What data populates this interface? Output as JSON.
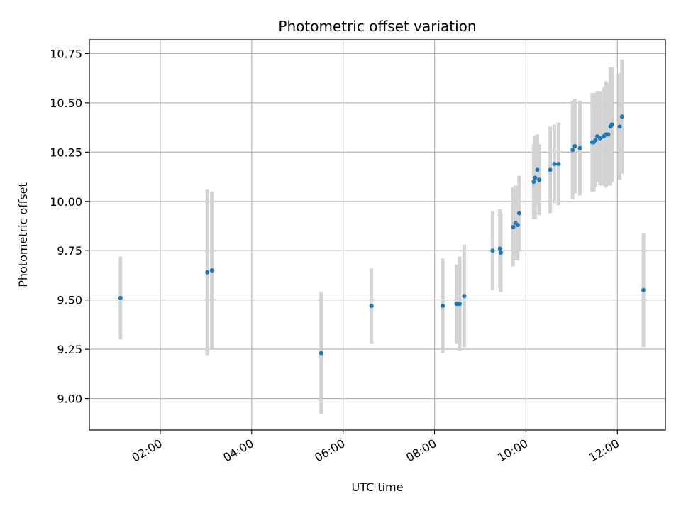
{
  "chart_data": {
    "type": "scatter",
    "title": "Photometric offset variation",
    "xlabel": "UTC time",
    "ylabel": "Photometric offset",
    "x_unit": "hours (UTC)",
    "xlim": [
      0.45,
      13.05
    ],
    "ylim": [
      8.84,
      10.82
    ],
    "grid": true,
    "x_ticks": [
      {
        "value": 2,
        "label": "02:00"
      },
      {
        "value": 4,
        "label": "04:00"
      },
      {
        "value": 6,
        "label": "06:00"
      },
      {
        "value": 8,
        "label": "08:00"
      },
      {
        "value": 10,
        "label": "10:00"
      },
      {
        "value": 12,
        "label": "12:00"
      }
    ],
    "y_ticks": [
      {
        "value": 9.0,
        "label": "9.00"
      },
      {
        "value": 9.25,
        "label": "9.25"
      },
      {
        "value": 9.5,
        "label": "9.50"
      },
      {
        "value": 9.75,
        "label": "9.75"
      },
      {
        "value": 10.0,
        "label": "10.00"
      },
      {
        "value": 10.25,
        "label": "10.25"
      },
      {
        "value": 10.5,
        "label": "10.50"
      },
      {
        "value": 10.75,
        "label": "10.75"
      }
    ],
    "colors": {
      "point": "#1f77b4",
      "errorbar": "#d3d3d3",
      "grid": "#b0b0b0"
    },
    "points": [
      {
        "x": 1.13,
        "y": 9.51,
        "err": 0.21
      },
      {
        "x": 3.03,
        "y": 9.64,
        "err": 0.42
      },
      {
        "x": 3.13,
        "y": 9.65,
        "err": 0.4
      },
      {
        "x": 5.52,
        "y": 9.23,
        "err": 0.31
      },
      {
        "x": 6.62,
        "y": 9.47,
        "err": 0.19
      },
      {
        "x": 8.18,
        "y": 9.47,
        "err": 0.24
      },
      {
        "x": 8.48,
        "y": 9.48,
        "err": 0.2
      },
      {
        "x": 8.55,
        "y": 9.48,
        "err": 0.24
      },
      {
        "x": 8.65,
        "y": 9.52,
        "err": 0.26
      },
      {
        "x": 9.27,
        "y": 9.75,
        "err": 0.2
      },
      {
        "x": 9.43,
        "y": 9.76,
        "err": 0.2
      },
      {
        "x": 9.45,
        "y": 9.74,
        "err": 0.2
      },
      {
        "x": 9.72,
        "y": 9.87,
        "err": 0.2
      },
      {
        "x": 9.77,
        "y": 9.89,
        "err": 0.19
      },
      {
        "x": 9.82,
        "y": 9.88,
        "err": 0.18
      },
      {
        "x": 9.85,
        "y": 9.94,
        "err": 0.19
      },
      {
        "x": 10.17,
        "y": 10.1,
        "err": 0.19
      },
      {
        "x": 10.2,
        "y": 10.12,
        "err": 0.21
      },
      {
        "x": 10.25,
        "y": 10.16,
        "err": 0.18
      },
      {
        "x": 10.29,
        "y": 10.11,
        "err": 0.18
      },
      {
        "x": 10.53,
        "y": 10.16,
        "err": 0.22
      },
      {
        "x": 10.62,
        "y": 10.19,
        "err": 0.2
      },
      {
        "x": 10.71,
        "y": 10.19,
        "err": 0.21
      },
      {
        "x": 11.02,
        "y": 10.26,
        "err": 0.25
      },
      {
        "x": 11.07,
        "y": 10.28,
        "err": 0.24
      },
      {
        "x": 11.18,
        "y": 10.27,
        "err": 0.24
      },
      {
        "x": 11.45,
        "y": 10.3,
        "err": 0.25
      },
      {
        "x": 11.48,
        "y": 10.3,
        "err": 0.25
      },
      {
        "x": 11.52,
        "y": 10.31,
        "err": 0.24
      },
      {
        "x": 11.56,
        "y": 10.33,
        "err": 0.23
      },
      {
        "x": 11.62,
        "y": 10.32,
        "err": 0.24
      },
      {
        "x": 11.7,
        "y": 10.33,
        "err": 0.25
      },
      {
        "x": 11.75,
        "y": 10.34,
        "err": 0.27
      },
      {
        "x": 11.8,
        "y": 10.34,
        "err": 0.26
      },
      {
        "x": 11.85,
        "y": 10.38,
        "err": 0.3
      },
      {
        "x": 11.88,
        "y": 10.39,
        "err": 0.29
      },
      {
        "x": 12.05,
        "y": 10.38,
        "err": 0.27
      },
      {
        "x": 12.1,
        "y": 10.43,
        "err": 0.29
      },
      {
        "x": 12.57,
        "y": 9.55,
        "err": 0.29
      }
    ]
  }
}
